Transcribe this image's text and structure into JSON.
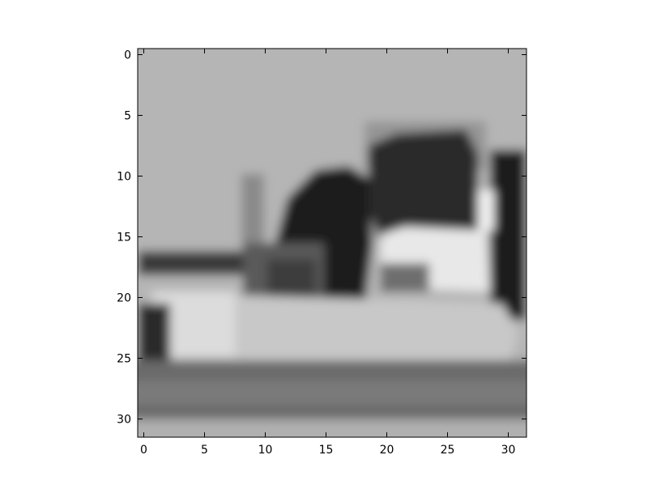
{
  "chart_data": {
    "type": "heatmap",
    "title": "",
    "xlabel": "",
    "ylabel": "",
    "colormap": "gray",
    "x_ticks": [
      0,
      5,
      10,
      15,
      20,
      25,
      30
    ],
    "y_ticks": [
      0,
      5,
      10,
      15,
      20,
      25,
      30
    ],
    "x_tick_labels": [
      "0",
      "5",
      "10",
      "15",
      "20",
      "25",
      "30"
    ],
    "y_tick_labels": [
      "0",
      "5",
      "10",
      "15",
      "20",
      "25",
      "30"
    ],
    "xlim": [
      -0.5,
      31.5
    ],
    "ylim": [
      31.5,
      -0.5
    ],
    "image_size": [
      32,
      32
    ],
    "grid": false,
    "legend": "none",
    "colors": {
      "axes_edge": "#000000",
      "background": "#ffffff"
    }
  }
}
